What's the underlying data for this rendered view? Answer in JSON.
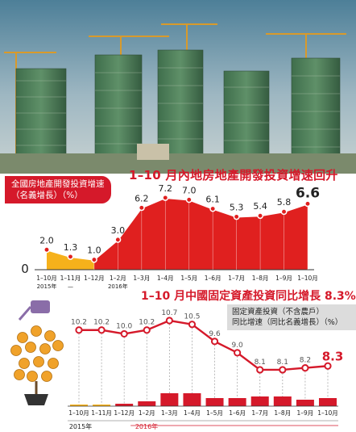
{
  "chart1": {
    "title": "1–10 月內地房地產開發投資增速回升",
    "subtitle_line1": "全國房地產開發投資增速",
    "subtitle_line2": "（名義增長）（%）",
    "zero_label": "0",
    "colors": {
      "pre": "#f6b11b",
      "main": "#e0201f",
      "line": "#ffffff",
      "header": "#d5192a"
    }
  },
  "chart2": {
    "title": "1–10 月中國固定資產投資同比增長 8.3%",
    "legend_line1": "固定資產投資（不含農戶）",
    "legend_line2": "同比增速（同比名義增長）（%）",
    "year_2015": "2015年",
    "year_2016": "2016年",
    "colors": {
      "line": "#d5192a",
      "bar": "#d5192a",
      "bar_pre": "#f6b11b",
      "drop": "#aaaaaa"
    }
  },
  "chart_data": [
    {
      "type": "area",
      "title": "1–10 月內地房地產開發投資增速回升",
      "subtitle": "全國房地產開發投資增速（名義增長）（%）",
      "categories": [
        "1–10月",
        "1–11月",
        "1–12月",
        "1–2月",
        "1–3月",
        "1–4月",
        "1–5月",
        "1–6月",
        "1–7月",
        "1–8月",
        "1–9月",
        "1–10月"
      ],
      "values": [
        2.0,
        1.3,
        1.0,
        3.0,
        6.2,
        7.2,
        7.0,
        6.1,
        5.3,
        5.4,
        5.8,
        6.6
      ],
      "value_labels": [
        "2.0",
        "1.3",
        "1.0",
        "3.0",
        "6.2",
        "7.2",
        "7.0",
        "6.1",
        "5.3",
        "5.4",
        "5.8",
        "6.6"
      ],
      "year_labels": [
        {
          "text": "2015年",
          "index": 0
        },
        {
          "text": "—",
          "index": 1
        },
        {
          "text": "2016年",
          "index": 3
        }
      ],
      "ylim": [
        0,
        8
      ]
    },
    {
      "type": "line",
      "title": "1–10 月中國固定資產投資同比增長 8.3%",
      "legend": "固定資產投資（不含農戶）同比增速（同比名義增長）（%）",
      "categories": [
        "1–10月",
        "1–11月",
        "1–12月",
        "1–2月",
        "1–3月",
        "1–4月",
        "1–5月",
        "1–6月",
        "1–7月",
        "1–8月",
        "1–9月",
        "1–10月"
      ],
      "values": [
        10.2,
        10.2,
        10.0,
        10.2,
        10.7,
        10.5,
        9.6,
        9.0,
        8.1,
        8.1,
        8.2,
        8.3
      ],
      "value_labels": [
        "10.2",
        "10.2",
        "10.0",
        "10.2",
        "10.7",
        "10.5",
        "9.6",
        "9.0",
        "8.1",
        "8.1",
        "8.2",
        "8.3"
      ],
      "ylim": [
        7.5,
        11
      ]
    }
  ]
}
